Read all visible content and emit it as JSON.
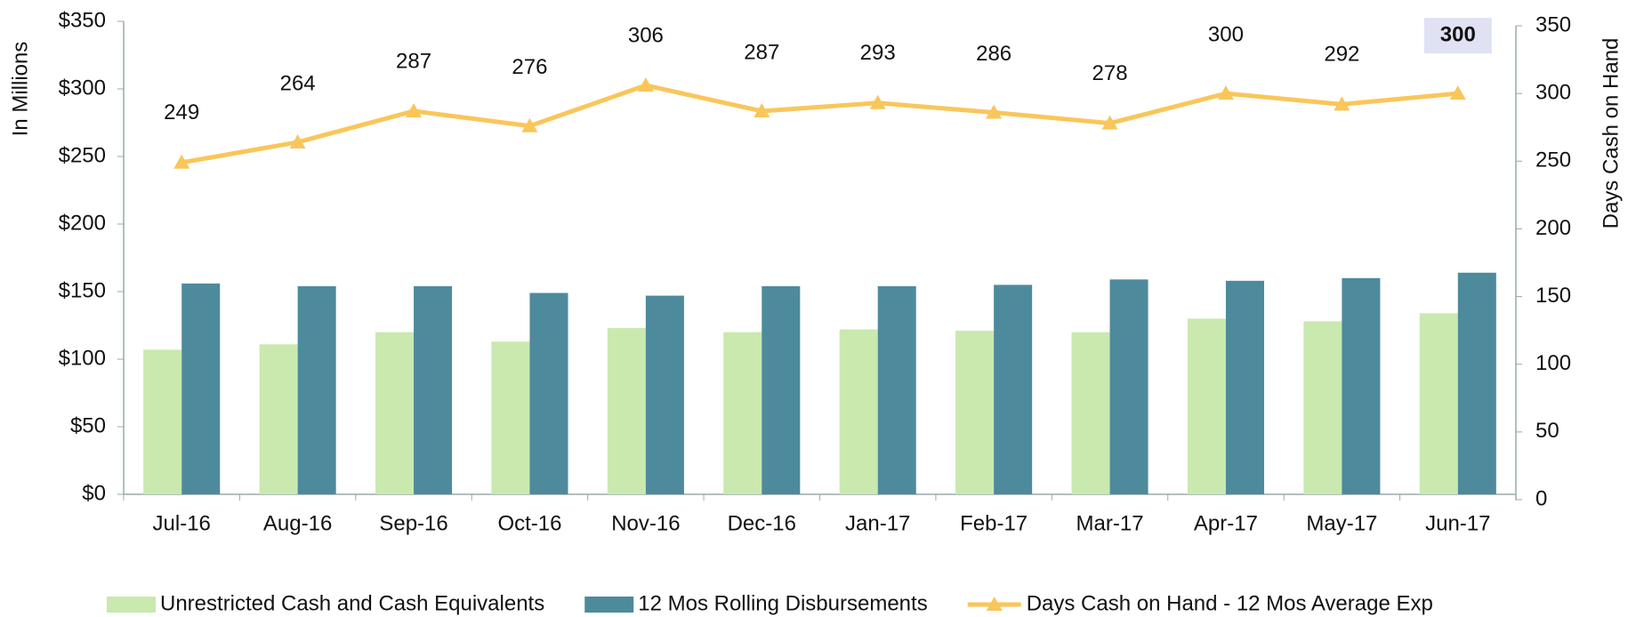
{
  "chart_data": {
    "type": "bar",
    "y_label": "In Millions",
    "y2_label": "Days Cash on Hand",
    "categories": [
      "Jul-16",
      "Aug-16",
      "Sep-16",
      "Oct-16",
      "Nov-16",
      "Dec-16",
      "Jan-17",
      "Feb-17",
      "Mar-17",
      "Apr-17",
      "May-17",
      "Jun-17"
    ],
    "series": [
      {
        "name": "Unrestricted Cash and Cash Equivalents",
        "type": "bar",
        "color": "#c9e9ae",
        "values": [
          107,
          111,
          120,
          113,
          123,
          120,
          122,
          121,
          120,
          130,
          128,
          134
        ]
      },
      {
        "name": "12 Mos Rolling Disbursements",
        "type": "bar",
        "color": "#4d8a9c",
        "values": [
          156,
          154,
          154,
          149,
          147,
          154,
          154,
          155,
          159,
          158,
          160,
          164
        ]
      },
      {
        "name": "Days Cash on Hand - 12 Mos Average Exp",
        "type": "line",
        "axis": "y2",
        "color": "#f9c65a",
        "values": [
          249,
          264,
          287,
          276,
          306,
          287,
          293,
          286,
          278,
          300,
          292,
          300
        ]
      }
    ],
    "highlighted_category": "Jun-17",
    "ylim": [
      0,
      350
    ],
    "yticks": [
      {
        "value": 0,
        "label": "$0"
      },
      {
        "value": 50,
        "label": "$50"
      },
      {
        "value": 100,
        "label": "$100"
      },
      {
        "value": 150,
        "label": "$150"
      },
      {
        "value": 200,
        "label": "$200"
      },
      {
        "value": 250,
        "label": "$250"
      },
      {
        "value": 300,
        "label": "$300"
      },
      {
        "value": 350,
        "label": "$350"
      }
    ],
    "y2lim": [
      0,
      350
    ],
    "y2ticks": [
      0,
      50,
      100,
      150,
      200,
      250,
      300,
      350
    ],
    "legend": "bottom"
  }
}
